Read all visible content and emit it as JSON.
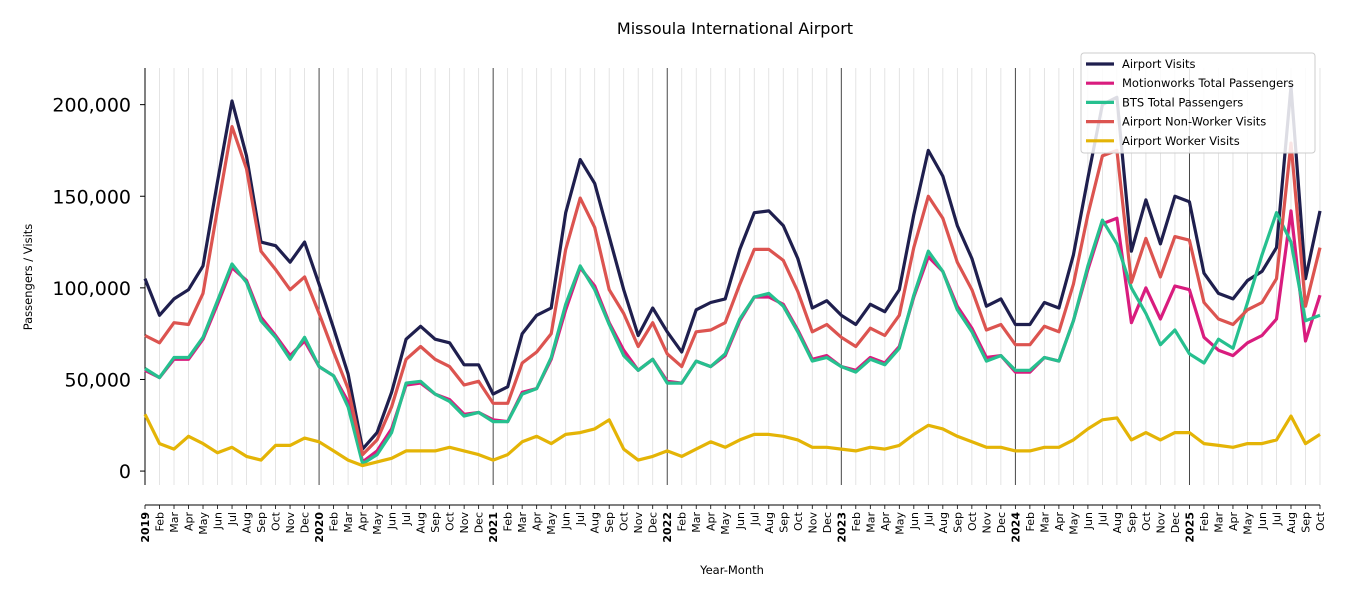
{
  "chart_data": {
    "type": "line",
    "title": "Missoula International Airport",
    "xlabel": "Year-Month",
    "ylabel": "Passengers / Visits",
    "ylim": [
      -7600,
      220000
    ],
    "yticks": [
      0,
      50000,
      100000,
      150000,
      200000
    ],
    "ytick_labels": [
      "0",
      "50,000",
      "100,000",
      "150,000",
      "200,000"
    ],
    "x_start": "2019-01",
    "x_end": "2025-10",
    "years": [
      "2019",
      "2020",
      "2021",
      "2022",
      "2023",
      "2024",
      "2025"
    ],
    "month_labels": [
      "Jan",
      "Feb",
      "Mar",
      "Apr",
      "May",
      "Jun",
      "Jul",
      "Aug",
      "Sep",
      "Oct",
      "Nov",
      "Dec"
    ],
    "legend_position": "top-right",
    "grid": "vertical monthly",
    "series": [
      {
        "name": "Airport Visits",
        "color": "#1f1f4e",
        "values": [
          105000,
          85000,
          94000,
          99000,
          112000,
          158000,
          202000,
          172000,
          125000,
          123000,
          114000,
          125000,
          102000,
          78000,
          53000,
          12000,
          21000,
          43000,
          72000,
          79000,
          72000,
          70000,
          58000,
          58000,
          42000,
          46000,
          75000,
          85000,
          89000,
          141000,
          170000,
          157000,
          128000,
          99000,
          74000,
          89000,
          76000,
          65000,
          88000,
          92000,
          94000,
          121000,
          141000,
          142000,
          134000,
          116000,
          89000,
          93000,
          85000,
          80000,
          91000,
          87000,
          99000,
          140000,
          175000,
          161000,
          134000,
          116000,
          90000,
          94000,
          80000,
          80000,
          92000,
          89000,
          118000,
          160000,
          200000,
          204000,
          120000,
          148000,
          124000,
          150000,
          147000,
          108000,
          97000,
          94000,
          104000,
          109000,
          122000,
          210000,
          105000,
          142000
        ]
      },
      {
        "name": "Motionworks Total Passengers",
        "color": "#d91c7e",
        "values": [
          55000,
          51000,
          61000,
          61000,
          72000,
          91000,
          111000,
          104000,
          84000,
          74000,
          63000,
          71000,
          57000,
          52000,
          38000,
          5000,
          11000,
          23000,
          47000,
          48000,
          42000,
          39000,
          31000,
          32000,
          28000,
          27000,
          43000,
          45000,
          61000,
          88000,
          111000,
          101000,
          81000,
          66000,
          55000,
          61000,
          49000,
          48000,
          60000,
          57000,
          63000,
          82000,
          95000,
          95000,
          91000,
          77000,
          61000,
          63000,
          57000,
          55000,
          62000,
          59000,
          68000,
          95000,
          117000,
          109000,
          90000,
          78000,
          62000,
          63000,
          54000,
          54000,
          62000,
          60000,
          82000,
          110000,
          135000,
          138000,
          81000,
          100000,
          83000,
          101000,
          99000,
          73000,
          66000,
          63000,
          70000,
          74000,
          83000,
          142000,
          71000,
          96000
        ]
      },
      {
        "name": "BTS Total Passengers",
        "color": "#26c08f",
        "values": [
          56000,
          51000,
          62000,
          62000,
          73000,
          93000,
          113000,
          103000,
          82000,
          73000,
          61000,
          73000,
          57000,
          52000,
          35000,
          4000,
          9000,
          21000,
          48000,
          49000,
          42000,
          38000,
          30000,
          32000,
          27000,
          27000,
          42000,
          45000,
          62000,
          91000,
          112000,
          99000,
          80000,
          63000,
          55000,
          61000,
          48000,
          48000,
          60000,
          57000,
          64000,
          83000,
          95000,
          97000,
          90000,
          76000,
          60000,
          62000,
          57000,
          54000,
          61000,
          58000,
          67000,
          96000,
          120000,
          109000,
          88000,
          76000,
          60000,
          63000,
          55000,
          55000,
          62000,
          60000,
          82000,
          112000,
          137000,
          124000,
          100000,
          86000,
          69000,
          77000,
          64000,
          59000,
          72000,
          67000,
          92000,
          118000,
          141000,
          125000,
          82000,
          85000
        ]
      },
      {
        "name": "Airport Non-Worker Visits",
        "color": "#dc5450",
        "values": [
          74000,
          70000,
          81000,
          80000,
          97000,
          143000,
          188000,
          165000,
          120000,
          110000,
          99000,
          106000,
          86000,
          65000,
          45000,
          9000,
          17000,
          35000,
          61000,
          68000,
          61000,
          57000,
          47000,
          49000,
          37000,
          37000,
          59000,
          65000,
          75000,
          121000,
          149000,
          133000,
          99000,
          86000,
          68000,
          81000,
          64000,
          57000,
          76000,
          77000,
          81000,
          102000,
          121000,
          121000,
          115000,
          98000,
          76000,
          80000,
          73000,
          68000,
          78000,
          74000,
          85000,
          122000,
          150000,
          138000,
          114000,
          99000,
          77000,
          80000,
          69000,
          69000,
          79000,
          76000,
          102000,
          140000,
          172000,
          175000,
          103000,
          127000,
          106000,
          128000,
          126000,
          92000,
          83000,
          80000,
          88000,
          92000,
          105000,
          179000,
          90000,
          122000
        ]
      },
      {
        "name": "Airport Worker Visits",
        "color": "#e4b406",
        "values": [
          31000,
          15000,
          12000,
          19000,
          15000,
          10000,
          13000,
          8000,
          6000,
          14000,
          14000,
          18000,
          16000,
          11000,
          6000,
          3000,
          5000,
          7000,
          11000,
          11000,
          11000,
          13000,
          11000,
          9000,
          6000,
          9000,
          16000,
          19000,
          15000,
          20000,
          21000,
          23000,
          28000,
          12000,
          6000,
          8000,
          11000,
          8000,
          12000,
          16000,
          13000,
          17000,
          20000,
          20000,
          19000,
          17000,
          13000,
          13000,
          12000,
          11000,
          13000,
          12000,
          14000,
          20000,
          25000,
          23000,
          19000,
          16000,
          13000,
          13000,
          11000,
          11000,
          13000,
          13000,
          17000,
          23000,
          28000,
          29000,
          17000,
          21000,
          17000,
          21000,
          21000,
          15000,
          14000,
          13000,
          15000,
          15000,
          17000,
          30000,
          15000,
          20000
        ]
      }
    ]
  }
}
